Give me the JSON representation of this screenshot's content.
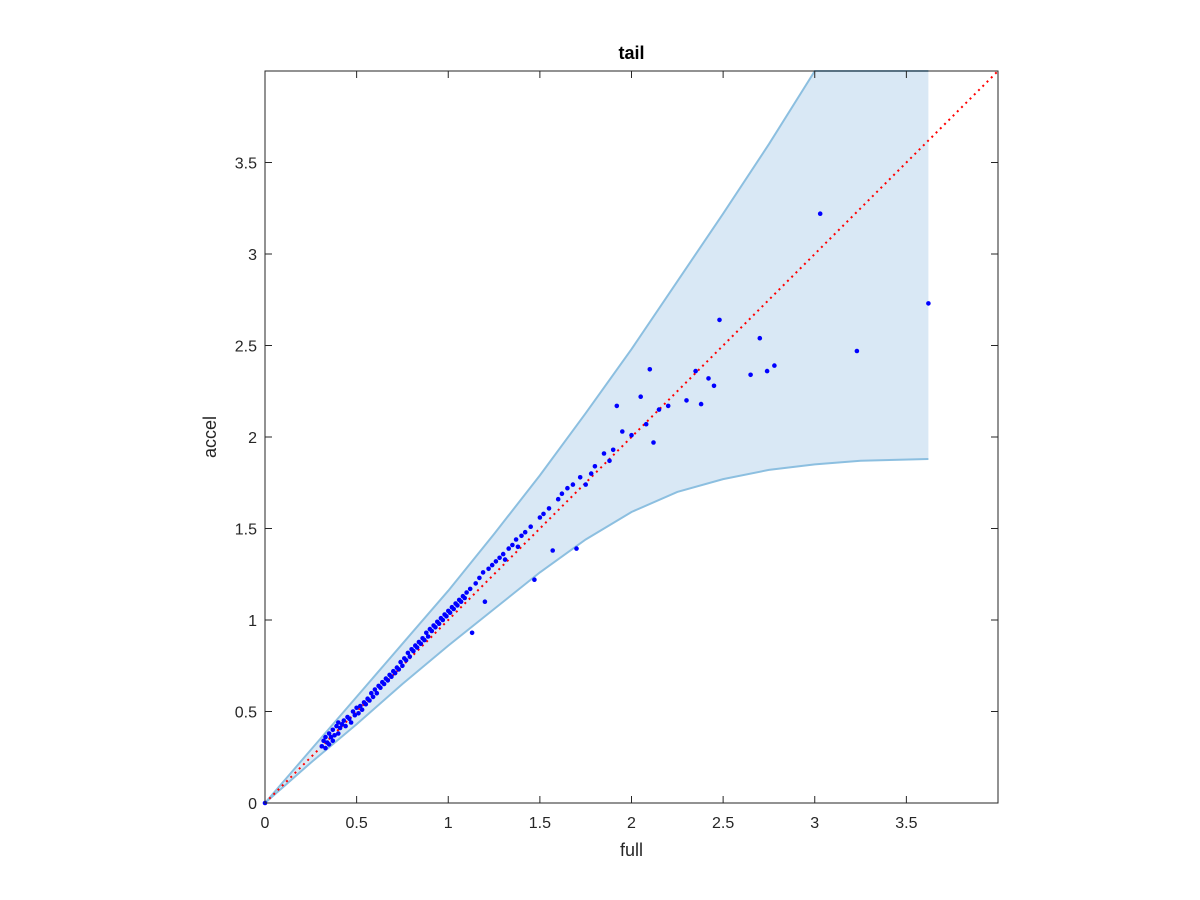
{
  "chart_data": {
    "type": "scatter",
    "title": "tail",
    "xlabel": "full",
    "ylabel": "accel",
    "xlim": [
      0,
      4
    ],
    "ylim": [
      0,
      4
    ],
    "xticks": [
      0,
      0.5,
      1,
      1.5,
      2,
      2.5,
      3,
      3.5
    ],
    "yticks": [
      0,
      0.5,
      1,
      1.5,
      2,
      2.5,
      3,
      3.5
    ],
    "grid": false,
    "legend": "none",
    "colors": {
      "points": "#0000ff",
      "band_fill": "#d9e8f5",
      "band_edge": "#8cbfe0",
      "reference_line": "#ff0000",
      "axes": "#262626"
    },
    "reference_line": {
      "x": [
        0,
        4
      ],
      "y": [
        0,
        4
      ],
      "style": "dotted"
    },
    "band": {
      "x": [
        0,
        0.25,
        0.5,
        0.75,
        1.0,
        1.25,
        1.5,
        1.75,
        2.0,
        2.25,
        2.5,
        2.75,
        3.0,
        3.25,
        3.62
      ],
      "upper": [
        0,
        0.29,
        0.58,
        0.87,
        1.16,
        1.47,
        1.79,
        2.13,
        2.48,
        2.85,
        3.22,
        3.6,
        4.0,
        4.0,
        4.0
      ],
      "lower": [
        0,
        0.22,
        0.43,
        0.65,
        0.86,
        1.06,
        1.26,
        1.44,
        1.59,
        1.7,
        1.77,
        1.82,
        1.85,
        1.87,
        1.88
      ]
    },
    "series": [
      {
        "x": [
          0.0,
          0.31,
          0.32,
          0.33,
          0.33,
          0.34,
          0.35,
          0.35,
          0.36,
          0.37,
          0.37,
          0.38,
          0.39,
          0.4,
          0.4,
          0.41,
          0.42,
          0.43,
          0.44,
          0.45,
          0.46,
          0.47,
          0.48,
          0.49,
          0.5,
          0.51,
          0.52,
          0.53,
          0.54,
          0.55,
          0.56,
          0.57,
          0.58,
          0.59,
          0.6,
          0.61,
          0.62,
          0.63,
          0.64,
          0.65,
          0.66,
          0.67,
          0.68,
          0.69,
          0.7,
          0.71,
          0.72,
          0.73,
          0.74,
          0.75,
          0.76,
          0.77,
          0.78,
          0.79,
          0.8,
          0.81,
          0.82,
          0.83,
          0.84,
          0.85,
          0.86,
          0.87,
          0.88,
          0.89,
          0.9,
          0.91,
          0.92,
          0.93,
          0.94,
          0.95,
          0.96,
          0.97,
          0.98,
          0.99,
          1.0,
          1.01,
          1.02,
          1.03,
          1.04,
          1.05,
          1.06,
          1.07,
          1.08,
          1.09,
          1.1,
          1.12,
          1.13,
          1.15,
          1.17,
          1.19,
          1.2,
          1.22,
          1.24,
          1.26,
          1.28,
          1.3,
          1.31,
          1.33,
          1.35,
          1.37,
          1.38,
          1.4,
          1.42,
          1.45,
          1.47,
          1.5,
          1.52,
          1.55,
          1.57,
          1.6,
          1.62,
          1.65,
          1.68,
          1.7,
          1.72,
          1.75,
          1.78,
          1.8,
          1.85,
          1.88,
          1.9,
          1.92,
          1.95,
          2.0,
          2.05,
          2.08,
          2.1,
          2.12,
          2.15,
          2.2,
          2.3,
          2.35,
          2.38,
          2.42,
          2.45,
          2.48,
          2.65,
          2.7,
          2.74,
          2.78,
          3.03,
          3.23,
          3.62
        ],
        "y": [
          0.0,
          0.31,
          0.34,
          0.3,
          0.36,
          0.33,
          0.32,
          0.38,
          0.36,
          0.34,
          0.4,
          0.37,
          0.42,
          0.38,
          0.44,
          0.41,
          0.43,
          0.45,
          0.42,
          0.47,
          0.46,
          0.44,
          0.5,
          0.48,
          0.52,
          0.49,
          0.53,
          0.51,
          0.55,
          0.54,
          0.57,
          0.56,
          0.6,
          0.58,
          0.62,
          0.6,
          0.64,
          0.63,
          0.66,
          0.65,
          0.68,
          0.67,
          0.7,
          0.69,
          0.72,
          0.71,
          0.74,
          0.73,
          0.77,
          0.75,
          0.79,
          0.78,
          0.82,
          0.8,
          0.84,
          0.83,
          0.86,
          0.85,
          0.88,
          0.87,
          0.9,
          0.89,
          0.93,
          0.91,
          0.95,
          0.94,
          0.97,
          0.96,
          0.99,
          0.98,
          1.01,
          1.0,
          1.03,
          1.02,
          1.05,
          1.04,
          1.07,
          1.06,
          1.09,
          1.08,
          1.11,
          1.1,
          1.13,
          1.12,
          1.15,
          1.17,
          0.93,
          1.2,
          1.23,
          1.26,
          1.1,
          1.28,
          1.3,
          1.32,
          1.34,
          1.36,
          1.33,
          1.39,
          1.41,
          1.44,
          1.4,
          1.46,
          1.48,
          1.51,
          1.22,
          1.56,
          1.58,
          1.61,
          1.38,
          1.66,
          1.69,
          1.72,
          1.74,
          1.39,
          1.78,
          1.74,
          1.8,
          1.84,
          1.91,
          1.87,
          1.93,
          2.17,
          2.03,
          2.01,
          2.22,
          2.07,
          2.37,
          1.97,
          2.15,
          2.17,
          2.2,
          2.36,
          2.18,
          2.32,
          2.28,
          2.64,
          2.34,
          2.54,
          2.36,
          2.39,
          3.22,
          2.47,
          2.73
        ]
      }
    ]
  }
}
